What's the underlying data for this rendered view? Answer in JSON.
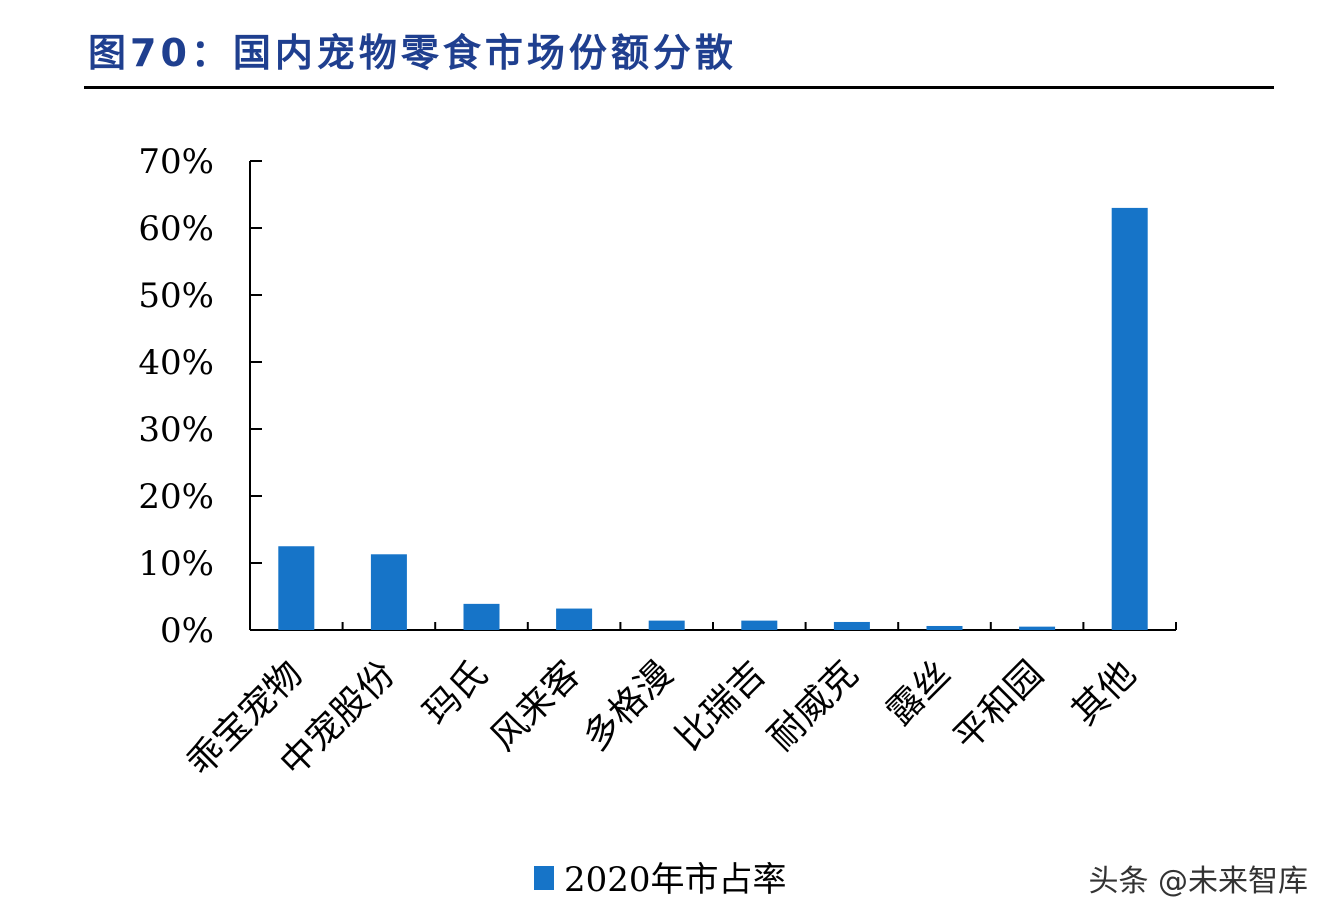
{
  "header": {
    "title": "图70：国内宠物零食市场份额分散"
  },
  "watermark": "头条 @未来智库",
  "chart_data": {
    "type": "bar",
    "categories": [
      "乖宝宠物",
      "中宠股份",
      "玛氏",
      "风来客",
      "多格漫",
      "比瑞吉",
      "耐威克",
      "露丝",
      "平和园",
      "其他"
    ],
    "series": [
      {
        "name": "2020年市占率",
        "values": [
          12.5,
          11.3,
          3.9,
          3.2,
          1.4,
          1.4,
          1.2,
          0.6,
          0.5,
          63.0
        ],
        "color": "#1674c8"
      }
    ],
    "y_tick_labels": [
      "0%",
      "10%",
      "20%",
      "30%",
      "40%",
      "50%",
      "60%",
      "70%"
    ],
    "ylim": [
      0,
      70
    ],
    "ytick_step": 10,
    "grid": false,
    "legend_position": "bottom"
  }
}
